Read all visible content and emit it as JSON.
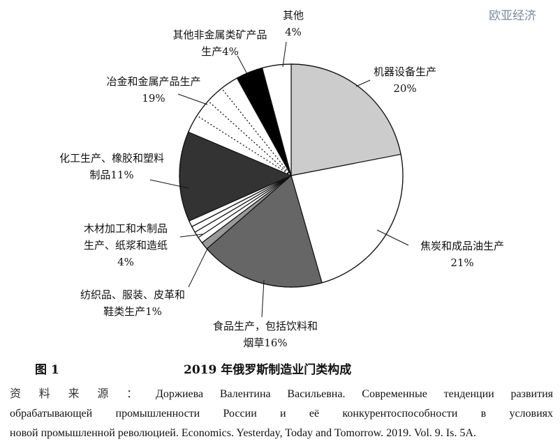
{
  "chart_data": {
    "type": "pie",
    "title": "2019 年俄罗斯制造业门类构成",
    "figure_label": "图 1",
    "start": "top",
    "direction": "clockwise",
    "slices": [
      {
        "label": [
          "机器设备生产",
          "20%"
        ],
        "value": 20,
        "fill": "#cccccc",
        "pattern": "solid"
      },
      {
        "label": [
          "焦炭和成品油生产",
          "21%"
        ],
        "value": 21,
        "fill": "#ffffff",
        "pattern": "solid"
      },
      {
        "label": [
          "食品生产，包括饮料和",
          "烟草16%"
        ],
        "value": 16,
        "fill": "#666666",
        "pattern": "solid"
      },
      {
        "label": [
          "纺织品、服装、皮革和",
          "鞋类生产1%"
        ],
        "value": 1,
        "fill": "#999999",
        "pattern": "solid"
      },
      {
        "label": [
          "木材加工和木制品",
          "生产、纸浆和造纸",
          "4%"
        ],
        "value": 4,
        "fill": "#ffffff",
        "pattern": "solid-lines"
      },
      {
        "label": [
          "化工生产、橡胶和塑料",
          "制品11%"
        ],
        "value": 11,
        "fill": "#333333",
        "pattern": "solid"
      },
      {
        "label": [
          "冶金和金属产品生产",
          "19%"
        ],
        "value": 19,
        "fill": "#ffffff",
        "pattern": "dotted-lines"
      },
      {
        "label": [
          "其他非金属类矿产品",
          "生产4%"
        ],
        "value": 4,
        "fill": "#000000",
        "pattern": "solid"
      },
      {
        "label": [
          "其他",
          "4%"
        ],
        "value": 4,
        "fill": "#ffffff",
        "pattern": "solid"
      }
    ]
  },
  "caption": {
    "figure_label": "图 1",
    "title": "2019 年俄罗斯制造业门类构成"
  },
  "source": {
    "label": "资料来源：",
    "line1": "Доржиева Валентина Васильевна. Современные тенденции развития",
    "line2": "обрабатывающей промышленности России и её конкурентоспособности в условиях",
    "line3": "новой промышленной революцией. Economics. Yesterday, Today and Tomorrow. 2019. Vol. 9. Is. 5A."
  },
  "watermark": "欧亚经济"
}
